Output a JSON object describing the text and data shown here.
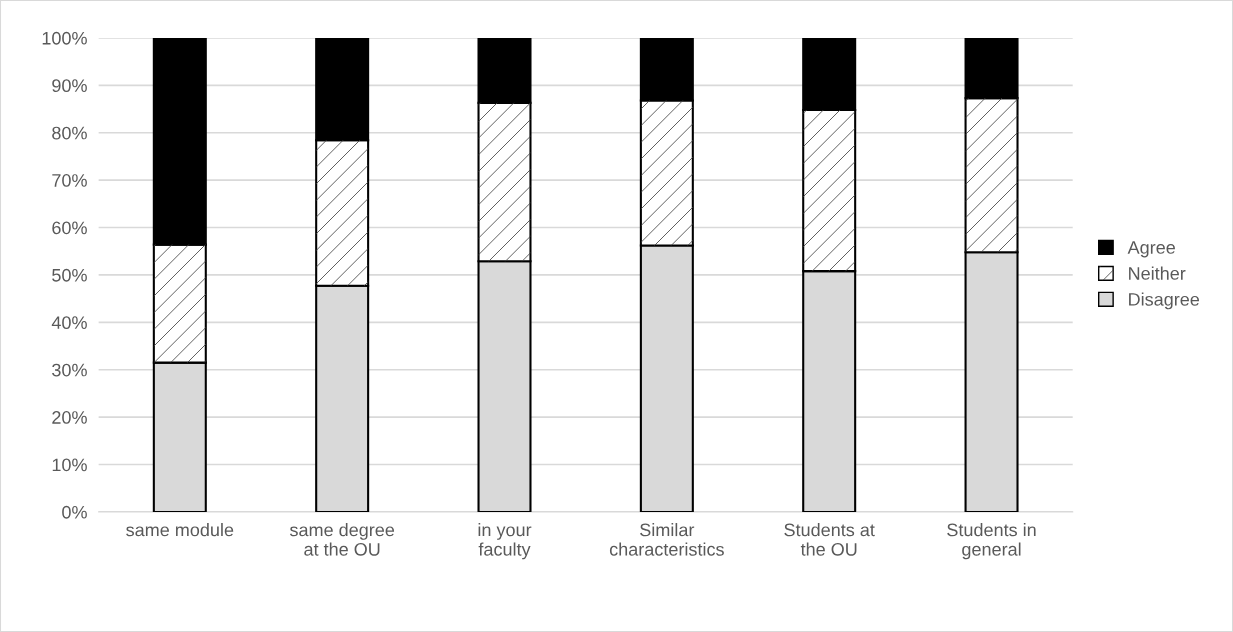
{
  "chart_data": {
    "type": "bar",
    "stacked": true,
    "categories": [
      "same module",
      "same degree\nat the OU",
      "in your\nfaculty",
      "Similar\ncharacteristics",
      "Students at\nthe OU",
      "Students in\ngeneral"
    ],
    "series": [
      {
        "name": "Disagree",
        "color": "#d9d9d9",
        "values": [
          31.5,
          47.7,
          52.9,
          56.2,
          50.8,
          54.8
        ]
      },
      {
        "name": "Neither",
        "color": "#ffffff",
        "values": [
          24.9,
          30.7,
          33.4,
          30.6,
          34.0,
          32.5
        ]
      },
      {
        "name": "Agree",
        "color": "#000000",
        "values": [
          43.6,
          21.6,
          13.7,
          13.2,
          15.2,
          12.7
        ]
      }
    ],
    "ylim": [
      0,
      100
    ],
    "yticks": [
      {
        "value": 0,
        "label": "0%"
      },
      {
        "value": 10,
        "label": "10%"
      },
      {
        "value": 20,
        "label": "20%"
      },
      {
        "value": 30,
        "label": "30%"
      },
      {
        "value": 40,
        "label": "40%"
      },
      {
        "value": 50,
        "label": "50%"
      },
      {
        "value": 60,
        "label": "60%"
      },
      {
        "value": 70,
        "label": "70%"
      },
      {
        "value": 80,
        "label": "80%"
      },
      {
        "value": 90,
        "label": "90%"
      },
      {
        "value": 100,
        "label": "100%"
      }
    ],
    "grid": "y",
    "legend": "right"
  }
}
